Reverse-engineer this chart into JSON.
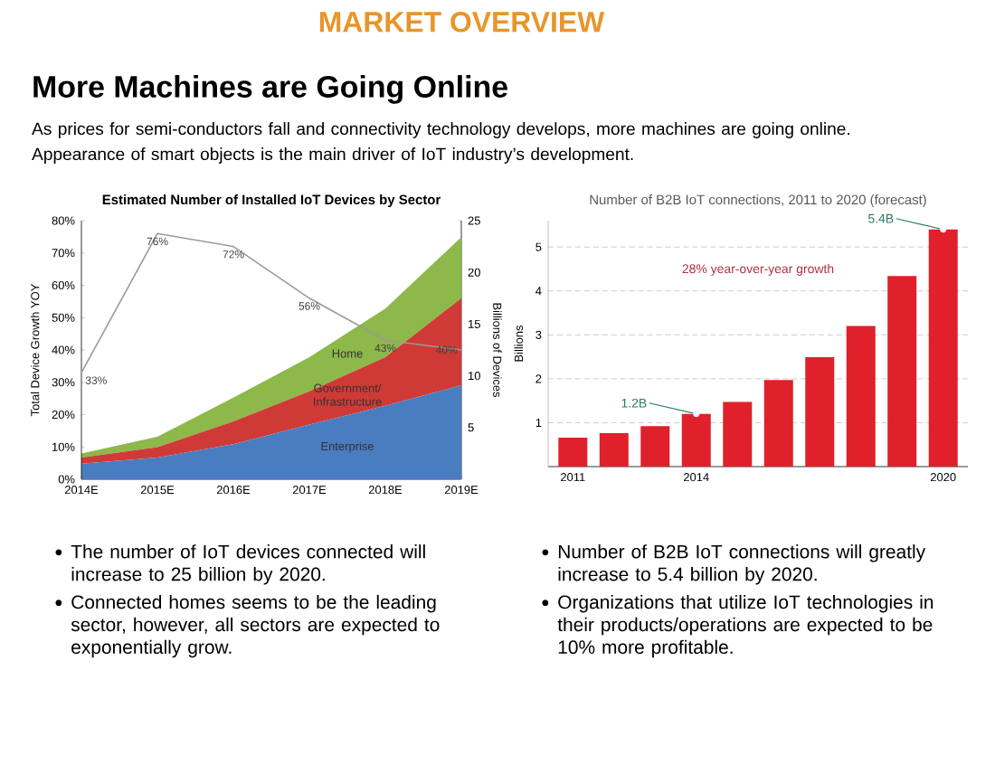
{
  "chart_data": [
    {
      "type": "other",
      "title": "MARKET OVERVIEW",
      "subtitle": "More Machines are Going Online",
      "color": "#e8952a",
      "annotations": [
        "As prices for semi-conductors fall and connectivity technology develops, more machines are going online.",
        "Appearance of smart objects is the main driver of IoT industry’s development."
      ]
    },
    {
      "type": "area",
      "title": "Estimated Number of Installed IoT Devices by Sector",
      "stacked": true,
      "categories": [
        "2014E",
        "2015E",
        "2016E",
        "2017E",
        "2018E",
        "2019E"
      ],
      "ylabel": "Total Device Growth YOY",
      "y2label": "Billions of Devices",
      "ylim": [
        0,
        80
      ],
      "yticks": [
        {
          "value": 0,
          "label": "0%"
        },
        {
          "value": 10,
          "label": "10%"
        },
        {
          "value": 20,
          "label": "20%"
        },
        {
          "value": 30,
          "label": "30%"
        },
        {
          "value": 40,
          "label": "40%"
        },
        {
          "value": 50,
          "label": "50%"
        },
        {
          "value": 60,
          "label": "60%"
        },
        {
          "value": 70,
          "label": "70%"
        },
        {
          "value": 80,
          "label": "80%"
        }
      ],
      "y2lim": [
        0,
        25
      ],
      "y2ticks": [
        5,
        10,
        15,
        20,
        25
      ],
      "series": [
        {
          "name": "Enterprise",
          "color": "#4a7cc0",
          "axis": "y2",
          "values": [
            1.5,
            2.1,
            3.4,
            5.3,
            7.1,
            9.1
          ]
        },
        {
          "name": "Government/ Infrastructure",
          "color": "#d03a36",
          "axis": "y2",
          "values": [
            0.6,
            1.0,
            2.2,
            3.2,
            4.7,
            8.4
          ]
        },
        {
          "name": "Home",
          "color": "#8db84a",
          "axis": "y2",
          "values": [
            0.4,
            1.0,
            2.3,
            3.3,
            4.7,
            5.9
          ]
        },
        {
          "type": "line",
          "color": "#9a9a9a",
          "axis": "y",
          "values": [
            33,
            76,
            72,
            56,
            43,
            40
          ],
          "value_labels": [
            "33%",
            "76%",
            "72%",
            "56%",
            "43%",
            "40%"
          ]
        }
      ],
      "annotations": [
        "The number of IoT devices connected will increase to 25 billion by 2020.",
        "Connected homes seems to be the leading sector, however, all sectors are expected to exponentially grow."
      ]
    },
    {
      "type": "bar",
      "title": "Number of B2B IoT connections, 2011 to 2020 (forecast)",
      "categories": [
        "2011",
        null,
        null,
        "2014",
        null,
        null,
        null,
        null,
        null,
        "2020"
      ],
      "values": [
        0.66,
        0.76,
        0.92,
        1.2,
        1.47,
        1.97,
        2.49,
        3.2,
        4.34,
        5.4
      ],
      "color": "#e0202a",
      "ylabel": "Billions",
      "ylim": [
        0,
        5.6
      ],
      "yticks": [
        1,
        2,
        3,
        4,
        5
      ],
      "grid": "y",
      "annotations": [
        {
          "text": "1.2B",
          "x": "2014",
          "y": 1.2
        },
        {
          "text": "5.4B",
          "x": "2020",
          "y": 5.4
        },
        "28% year-over-year growth",
        "Number of B2B IoT connections will greatly increase to 5.4 billion by 2020.",
        "Organizations that utilize IoT technologies in their products/operations are expected to be 10% more profitable."
      ]
    }
  ]
}
